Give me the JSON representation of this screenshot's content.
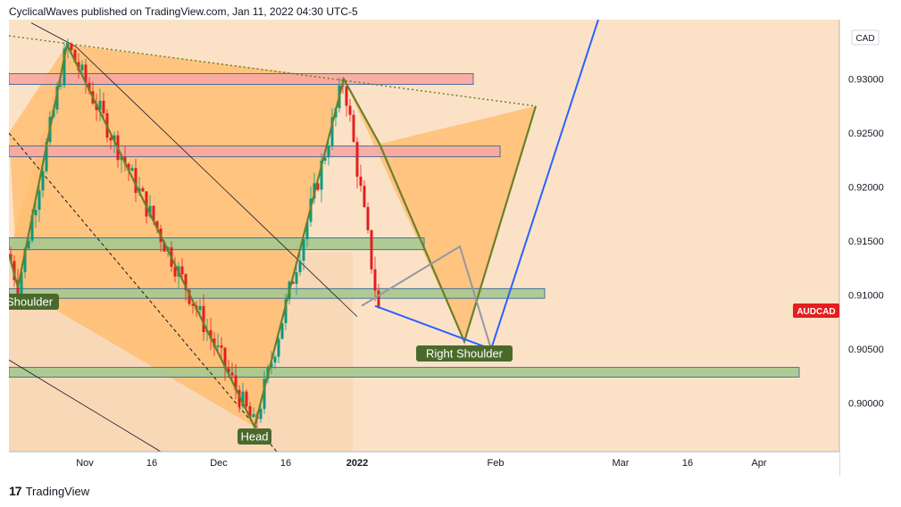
{
  "header": {
    "published_line": "CyclicalWaves published on TradingView.com, Jan 11, 2022 04:30 UTC-5"
  },
  "footer": {
    "logo_glyph": "17",
    "brand": "TradingView"
  },
  "colors": {
    "background": "#fbe2c7",
    "triangle_fill": "#ffbe73",
    "pattern_line": "#6b7f2a",
    "projection_blue": "#2962ff",
    "projection_gray": "#9598a1",
    "zone_red": "#f7a8a0",
    "zone_green": "#a5c98f",
    "candle_up": "#089981",
    "candle_down": "#e51e1e",
    "symbol_badge": "#e51e1e",
    "label_bg": "#4a6a2b"
  },
  "chart_data": {
    "type": "candlestick",
    "symbol": "AUDCAD",
    "currency": "CAD",
    "x_ticks": [
      "Nov",
      "16",
      "Dec",
      "16",
      "2022",
      "Feb",
      "Mar",
      "16",
      "Apr"
    ],
    "y_ticks": [
      "0.93000",
      "0.92500",
      "0.92000",
      "0.91500",
      "0.91000",
      "0.90500",
      "0.90000"
    ],
    "ylim": [
      0.8955,
      0.9355
    ],
    "last_price_badge": "AUDCAD",
    "annotations": [
      "Shoulder",
      "Head",
      "Right Shoulder"
    ],
    "zigzag": [
      {
        "date": "2021-10-15",
        "price": 0.9138
      },
      {
        "date": "2021-10-17",
        "price": 0.9107
      },
      {
        "date": "2021-10-28",
        "price": 0.9332
      },
      {
        "date": "2021-12-09",
        "price": 0.8978
      },
      {
        "date": "2021-12-29",
        "price": 0.93
      },
      {
        "date": "2022-01-06",
        "price": 0.924
      },
      {
        "date": "2022-01-25",
        "price": 0.9057
      },
      {
        "date": "2022-02-10",
        "price": 0.9275
      }
    ],
    "projection_blue": [
      {
        "date": "2022-01-05",
        "price": 0.909
      },
      {
        "date": "2022-01-31",
        "price": 0.905
      },
      {
        "date": "2022-02-24",
        "price": 0.9355
      }
    ],
    "projection_gray": [
      {
        "date": "2022-01-02",
        "price": 0.909
      },
      {
        "date": "2022-01-24",
        "price": 0.9145
      },
      {
        "date": "2022-01-31",
        "price": 0.905
      }
    ],
    "zones": [
      {
        "color": "red",
        "from": "2021-10-15",
        "to": "2022-01-27",
        "low": 0.9295,
        "high": 0.9305
      },
      {
        "color": "red",
        "from": "2021-10-15",
        "to": "2022-02-02",
        "low": 0.9228,
        "high": 0.9238
      },
      {
        "color": "green",
        "from": "2021-10-15",
        "to": "2022-01-16",
        "low": 0.9142,
        "high": 0.9153
      },
      {
        "color": "green",
        "from": "2021-10-15",
        "to": "2022-02-12",
        "low": 0.9097,
        "high": 0.9106
      },
      {
        "color": "green",
        "from": "2021-10-15",
        "to": "2022-04-10",
        "low": 0.9024,
        "high": 0.9033
      }
    ]
  }
}
